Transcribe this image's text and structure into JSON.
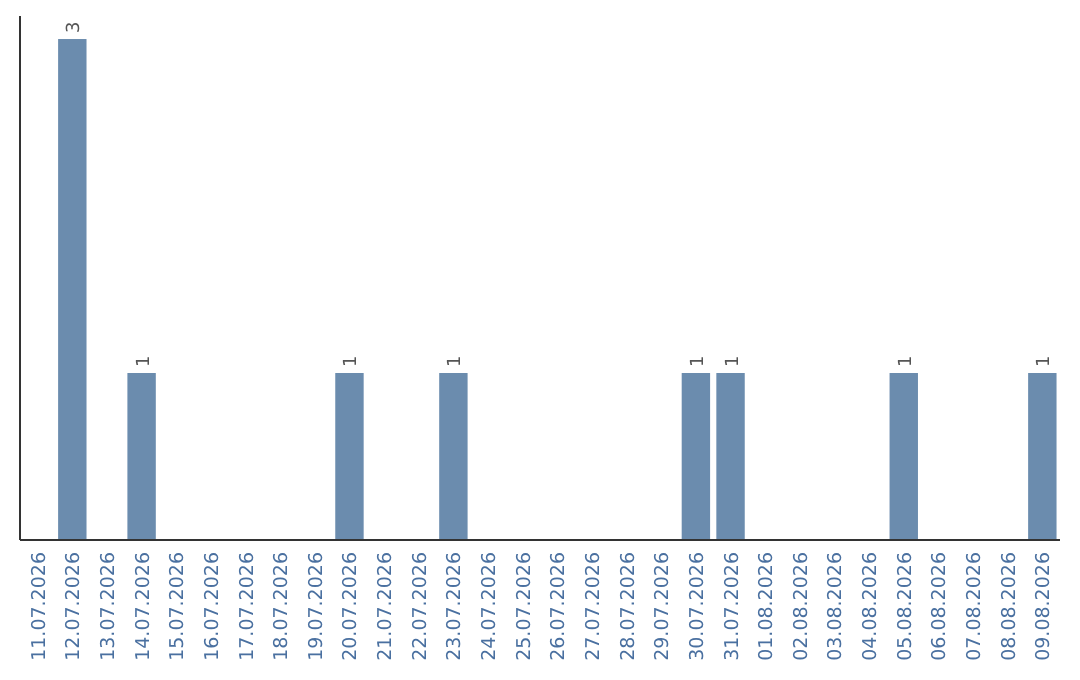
{
  "chart_data": {
    "type": "bar",
    "categories": [
      "11.07.2026",
      "12.07.2026",
      "13.07.2026",
      "14.07.2026",
      "15.07.2026",
      "16.07.2026",
      "17.07.2026",
      "18.07.2026",
      "19.07.2026",
      "20.07.2026",
      "21.07.2026",
      "22.07.2026",
      "23.07.2026",
      "24.07.2026",
      "25.07.2026",
      "26.07.2026",
      "27.07.2026",
      "28.07.2026",
      "29.07.2026",
      "30.07.2026",
      "31.07.2026",
      "01.08.2026",
      "02.08.2026",
      "03.08.2026",
      "04.08.2026",
      "05.08.2026",
      "06.08.2026",
      "07.08.2026",
      "08.08.2026",
      "09.08.2026"
    ],
    "values": [
      0,
      3,
      0,
      1,
      0,
      0,
      0,
      0,
      0,
      1,
      0,
      0,
      1,
      0,
      0,
      0,
      0,
      0,
      0,
      1,
      1,
      0,
      0,
      0,
      0,
      1,
      0,
      0,
      0,
      1
    ],
    "value_labels": [
      null,
      "3",
      null,
      "1",
      null,
      null,
      null,
      null,
      null,
      "1",
      null,
      null,
      "1",
      null,
      null,
      null,
      null,
      null,
      null,
      "1",
      "1",
      null,
      null,
      null,
      null,
      "1",
      null,
      null,
      null,
      "1"
    ],
    "color": "#6b8cae"
  }
}
